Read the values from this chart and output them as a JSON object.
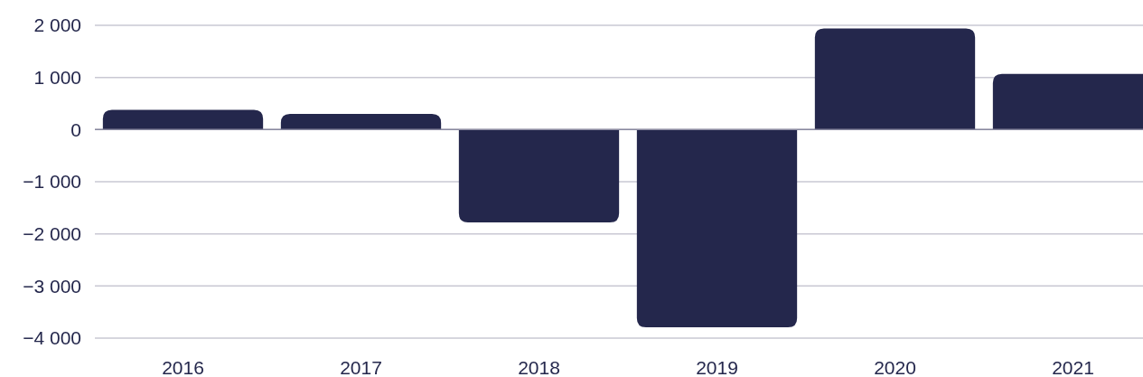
{
  "chart_data": {
    "type": "bar",
    "categories": [
      "2016",
      "2017",
      "2018",
      "2019",
      "2020",
      "2021"
    ],
    "values": [
      380,
      300,
      -1780,
      -3790,
      1940,
      1070
    ],
    "color": "#24274c",
    "ylim": [
      -4000,
      2000
    ],
    "yticks": [
      {
        "value": 2000,
        "label": "2 000"
      },
      {
        "value": 1000,
        "label": "1 000"
      },
      0,
      {
        "value": -1000,
        "label": "−1 000"
      },
      {
        "value": -2000,
        "label": "−2 000"
      },
      {
        "value": -3000,
        "label": "−3 000"
      },
      {
        "value": -4000,
        "label": "−4 000"
      }
    ],
    "grid": "y"
  }
}
